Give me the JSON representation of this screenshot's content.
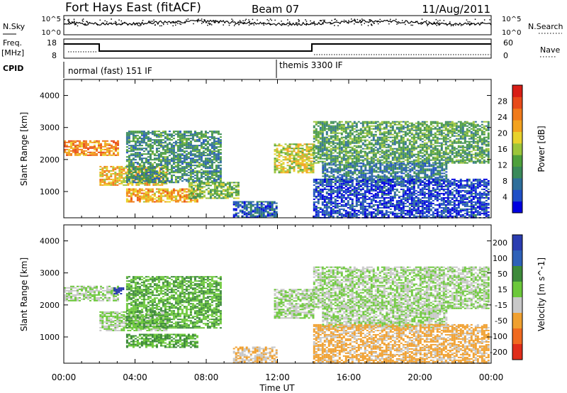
{
  "header": {
    "station": "Fort Hays East (fitACF)",
    "beam": "Beam 07",
    "date": "11/Aug/2011"
  },
  "noise_panel": {
    "left_label": "N.Sky",
    "left_ticks": [
      "10^5",
      "10^0"
    ],
    "right_label": "N.Search",
    "right_ticks": [
      "10^5",
      "10^0"
    ]
  },
  "freq_panel": {
    "left_label": "Freq.",
    "left_unit": "[MHz]",
    "left_ticks": [
      "18",
      "8"
    ],
    "right_label": "Nave",
    "right_ticks": [
      "60",
      "0"
    ]
  },
  "cpid_panel": {
    "label": "CPID",
    "modes": [
      "normal (fast) 151 IF",
      "themis 3300 IF"
    ]
  },
  "chart_data": [
    {
      "type": "heatmap",
      "title": "",
      "xlabel": "Time UT",
      "ylabel": "Slant Range [km]",
      "x_ticks": [
        "00:00",
        "04:00",
        "08:00",
        "12:00",
        "16:00",
        "20:00",
        "00:00"
      ],
      "xlim": [
        0,
        24
      ],
      "ylim": [
        180,
        4500
      ],
      "y_ticks": [
        1000,
        2000,
        3000,
        4000
      ],
      "colorbar": {
        "label": "Power [dB]",
        "range": [
          0,
          32
        ],
        "ticks": [
          4,
          8,
          12,
          16,
          20,
          24,
          28
        ],
        "colors": [
          "#0000e0",
          "#1f4fc6",
          "#2e6e9a",
          "#3a8a5a",
          "#4ea03c",
          "#9cc53a",
          "#e8d22c",
          "#f3a21f",
          "#f07a1b",
          "#e84a1a",
          "#d81e16"
        ]
      },
      "echo_regions": [
        {
          "t": [
            0.0,
            3.0
          ],
          "r": [
            2150,
            2600
          ],
          "p": 24
        },
        {
          "t": [
            2.0,
            5.8
          ],
          "r": [
            1200,
            1800
          ],
          "p": 20
        },
        {
          "t": [
            3.5,
            8.8
          ],
          "r": [
            1300,
            2900
          ],
          "p": 10
        },
        {
          "t": [
            3.5,
            7.5
          ],
          "r": [
            700,
            1100
          ],
          "p": 22
        },
        {
          "t": [
            7.0,
            9.8
          ],
          "r": [
            800,
            1300
          ],
          "p": 14
        },
        {
          "t": [
            9.5,
            12.0
          ],
          "r": [
            180,
            700
          ],
          "p": 6
        },
        {
          "t": [
            11.8,
            14.0
          ],
          "r": [
            1600,
            2500
          ],
          "p": 18
        },
        {
          "t": [
            14.0,
            23.9
          ],
          "r": [
            1900,
            3200
          ],
          "p": 12
        },
        {
          "t": [
            14.5,
            21.5
          ],
          "r": [
            1300,
            1900
          ],
          "p": 8
        },
        {
          "t": [
            14.0,
            23.9
          ],
          "r": [
            180,
            1400
          ],
          "p": 4
        }
      ]
    },
    {
      "type": "heatmap",
      "title": "",
      "xlabel": "Time UT",
      "ylabel": "Slant Range [km]",
      "x_ticks": [
        "00:00",
        "04:00",
        "08:00",
        "12:00",
        "16:00",
        "20:00",
        "00:00"
      ],
      "xlim": [
        0,
        24
      ],
      "ylim": [
        180,
        4500
      ],
      "y_ticks": [
        1000,
        2000,
        3000,
        4000
      ],
      "colorbar": {
        "label": "Velocity [m s^-1]",
        "tick_labels": [
          "200",
          "100",
          "50",
          "15",
          "-15",
          "-50",
          "-100",
          "-200"
        ],
        "colors": [
          "#2a3cb0",
          "#2e61b8",
          "#3d8a3a",
          "#6cc83a",
          "#c8c8c8",
          "#f0a030",
          "#f06a20",
          "#e02d1a"
        ]
      },
      "echo_regions": [
        {
          "t": [
            0.0,
            3.0
          ],
          "r": [
            2150,
            2600
          ],
          "v": 0
        },
        {
          "t": [
            2.0,
            5.8
          ],
          "r": [
            1200,
            1800
          ],
          "v": 0
        },
        {
          "t": [
            3.5,
            8.8
          ],
          "r": [
            1300,
            2900
          ],
          "v": 30
        },
        {
          "t": [
            3.5,
            7.5
          ],
          "r": [
            700,
            1100
          ],
          "v": 35
        },
        {
          "t": [
            2.8,
            3.3
          ],
          "r": [
            2350,
            2550
          ],
          "v": 180
        },
        {
          "t": [
            9.5,
            12.0
          ],
          "r": [
            180,
            700
          ],
          "v": -30
        },
        {
          "t": [
            11.8,
            14.0
          ],
          "r": [
            1600,
            2500
          ],
          "v": 0
        },
        {
          "t": [
            14.0,
            23.9
          ],
          "r": [
            1900,
            3200
          ],
          "v": 0
        },
        {
          "t": [
            14.5,
            21.5
          ],
          "r": [
            1300,
            1900
          ],
          "v": 0
        },
        {
          "t": [
            14.0,
            23.9
          ],
          "r": [
            180,
            1400
          ],
          "v": -40
        }
      ]
    }
  ]
}
